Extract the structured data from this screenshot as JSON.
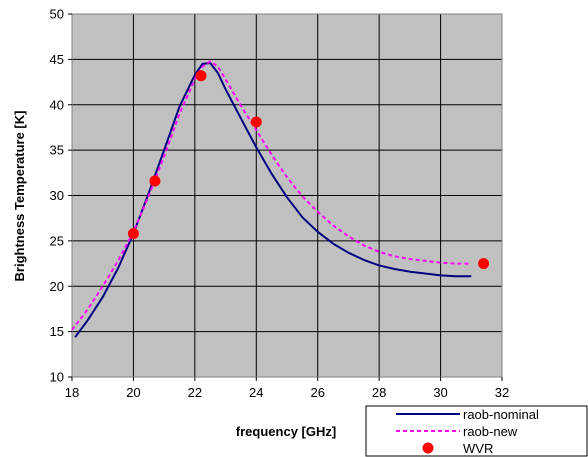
{
  "chart_data": {
    "type": "line",
    "xlabel": "frequency [GHz]",
    "ylabel": "Brightness Temperature [K]",
    "xlim": [
      18,
      32
    ],
    "ylim": [
      10,
      50
    ],
    "xticks": [
      18,
      20,
      22,
      24,
      26,
      28,
      30,
      32
    ],
    "yticks": [
      10,
      15,
      20,
      25,
      30,
      35,
      40,
      45,
      50
    ],
    "grid": true,
    "plot_background": "#c0c0c0",
    "legend_position": "bottom-right",
    "series": [
      {
        "name": "raob-nominal",
        "style": "solid-line",
        "color": "#000080",
        "x": [
          18.1,
          18.5,
          19.0,
          19.5,
          20.0,
          20.5,
          21.0,
          21.5,
          22.0,
          22.25,
          22.5,
          22.75,
          23.0,
          23.5,
          24.0,
          24.5,
          25.0,
          25.5,
          26.0,
          26.5,
          27.0,
          27.5,
          28.0,
          28.5,
          29.0,
          29.5,
          30.0,
          30.5,
          31.0
        ],
        "y": [
          14.4,
          16.2,
          18.8,
          22.0,
          25.8,
          30.3,
          35.0,
          39.8,
          43.3,
          44.5,
          44.6,
          43.5,
          41.7,
          38.5,
          35.3,
          32.4,
          29.8,
          27.6,
          26.0,
          24.7,
          23.7,
          22.9,
          22.3,
          21.9,
          21.6,
          21.4,
          21.2,
          21.1,
          21.1
        ]
      },
      {
        "name": "raob-new",
        "style": "dashed-line",
        "color": "#ff00ff",
        "x": [
          18.0,
          18.5,
          19.0,
          19.5,
          20.0,
          20.5,
          21.0,
          21.5,
          22.0,
          22.25,
          22.5,
          22.75,
          23.0,
          23.5,
          24.0,
          24.5,
          25.0,
          25.5,
          26.0,
          26.5,
          27.0,
          27.5,
          28.0,
          28.5,
          29.0,
          29.5,
          30.0,
          30.5,
          31.0
        ],
        "y": [
          15.2,
          17.4,
          20.0,
          22.8,
          26.0,
          30.0,
          34.3,
          39.0,
          42.8,
          44.2,
          44.8,
          44.2,
          42.8,
          39.9,
          37.2,
          34.5,
          32.0,
          29.9,
          28.2,
          26.7,
          25.5,
          24.5,
          23.8,
          23.3,
          23.0,
          22.8,
          22.6,
          22.5,
          22.5
        ]
      },
      {
        "name": "WVR",
        "style": "markers",
        "color": "#ff0000",
        "x": [
          20.0,
          20.7,
          22.2,
          24.0,
          31.4
        ],
        "y": [
          25.8,
          31.6,
          43.2,
          38.1,
          22.5
        ]
      }
    ]
  }
}
